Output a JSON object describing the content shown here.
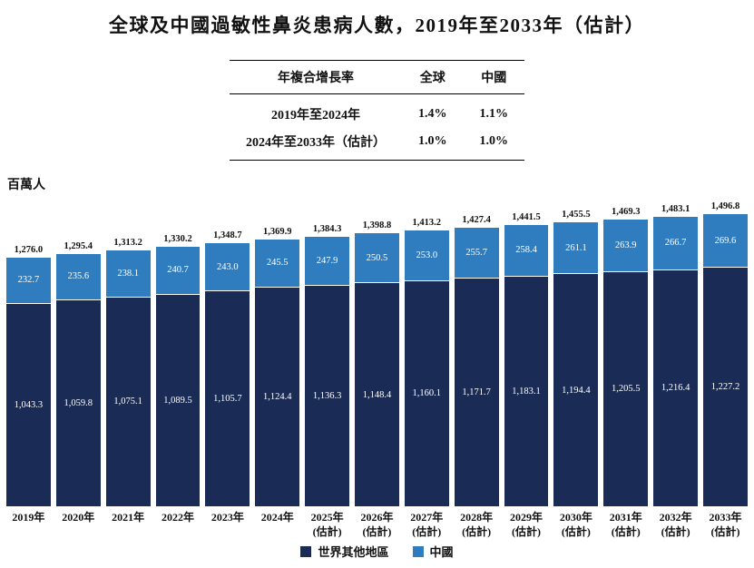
{
  "title": "全球及中國過敏性鼻炎患病人數，2019年至2033年（估計）",
  "cagr_table": {
    "headers": [
      "年複合增長率",
      "全球",
      "中國"
    ],
    "rows": [
      {
        "label": "2019年至2024年",
        "global": "1.4%",
        "china": "1.1%"
      },
      {
        "label": "2024年至2033年（估計）",
        "global": "1.0%",
        "china": "1.0%"
      }
    ]
  },
  "y_axis_label": "百萬人",
  "legend": [
    {
      "label": "世界其他地區",
      "color": "#1a2b55"
    },
    {
      "label": "中國",
      "color": "#2f7dbf"
    }
  ],
  "chart_data": {
    "type": "bar",
    "stacked": true,
    "title": "全球及中國過敏性鼻炎患病人數，2019年至2033年（估計）",
    "ylabel": "百萬人",
    "ylim": [
      0,
      1550
    ],
    "grid": false,
    "legend_position": "bottom",
    "categories": [
      {
        "label": "2019年",
        "sublabel": ""
      },
      {
        "label": "2020年",
        "sublabel": ""
      },
      {
        "label": "2021年",
        "sublabel": ""
      },
      {
        "label": "2022年",
        "sublabel": ""
      },
      {
        "label": "2023年",
        "sublabel": ""
      },
      {
        "label": "2024年",
        "sublabel": ""
      },
      {
        "label": "2025年",
        "sublabel": "(估計)"
      },
      {
        "label": "2026年",
        "sublabel": "(估計)"
      },
      {
        "label": "2027年",
        "sublabel": "(估計)"
      },
      {
        "label": "2028年",
        "sublabel": "(估計)"
      },
      {
        "label": "2029年",
        "sublabel": "(估計)"
      },
      {
        "label": "2030年",
        "sublabel": "(估計)"
      },
      {
        "label": "2031年",
        "sublabel": "(估計)"
      },
      {
        "label": "2032年",
        "sublabel": "(估計)"
      },
      {
        "label": "2033年",
        "sublabel": "(估計)"
      }
    ],
    "series": [
      {
        "name": "世界其他地區",
        "key": "world-others",
        "color": "#1a2b55",
        "values": [
          1043.3,
          1059.8,
          1075.1,
          1089.5,
          1105.7,
          1124.4,
          1136.3,
          1148.4,
          1160.1,
          1171.7,
          1183.1,
          1194.4,
          1205.5,
          1216.4,
          1227.2
        ]
      },
      {
        "name": "中國",
        "key": "china",
        "color": "#2f7dbf",
        "values": [
          232.7,
          235.6,
          238.1,
          240.7,
          243.0,
          245.5,
          247.9,
          250.5,
          253.0,
          255.7,
          258.4,
          261.1,
          263.9,
          266.7,
          269.6
        ]
      }
    ],
    "totals": [
      1276.0,
      1295.4,
      1313.2,
      1330.2,
      1348.7,
      1369.9,
      1384.3,
      1398.8,
      1413.2,
      1427.4,
      1441.5,
      1455.5,
      1469.3,
      1483.1,
      1496.8
    ]
  }
}
